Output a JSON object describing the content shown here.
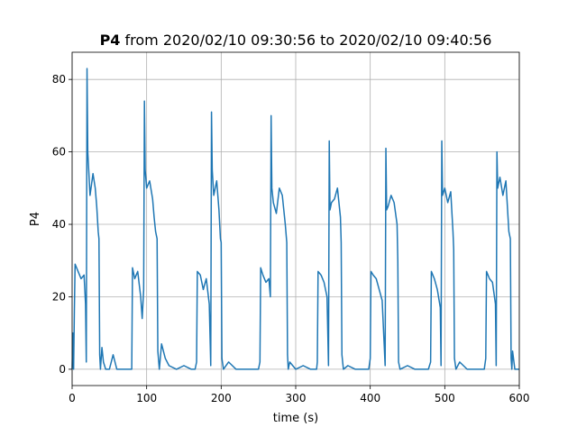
{
  "chart_data": {
    "type": "line",
    "title": {
      "name": "P4",
      "text": "from 2020/02/10 09:30:56 to 2020/02/10 09:40:56"
    },
    "xlabel": "time (s)",
    "ylabel": "P4",
    "xlim": [
      0,
      600
    ],
    "ylim": [
      -4.5,
      87.5
    ],
    "xticks": [
      0,
      100,
      200,
      300,
      400,
      500,
      600
    ],
    "yticks": [
      0,
      20,
      40,
      60,
      80
    ],
    "grid": true,
    "series": [
      {
        "color": "#1f77b4",
        "x": [
          0,
          1,
          2,
          3,
          4,
          8,
          12,
          16,
          18,
          19,
          20,
          21,
          24,
          28,
          31,
          33,
          35,
          36,
          37,
          38,
          40,
          42,
          45,
          50,
          55,
          60,
          70,
          78,
          80,
          81,
          84,
          88,
          92,
          94,
          96,
          97,
          98,
          100,
          104,
          108,
          110,
          112,
          114,
          115,
          117,
          120,
          125,
          130,
          140,
          150,
          160,
          165,
          167,
          168,
          172,
          176,
          180,
          184,
          186,
          187,
          188,
          190,
          194,
          197,
          199,
          200,
          201,
          203,
          210,
          220,
          240,
          250,
          252,
          253,
          256,
          260,
          264,
          266,
          267,
          268,
          270,
          274,
          278,
          282,
          286,
          288,
          289,
          290,
          292,
          300,
          310,
          320,
          328,
          329,
          330,
          334,
          338,
          342,
          344,
          345,
          346,
          348,
          352,
          356,
          360,
          361,
          362,
          364,
          370,
          380,
          390,
          398,
          400,
          401,
          404,
          408,
          412,
          416,
          420,
          421,
          422,
          424,
          428,
          432,
          436,
          437,
          438,
          440,
          450,
          460,
          470,
          478,
          481,
          482,
          486,
          490,
          494,
          495,
          496,
          497,
          500,
          504,
          508,
          511,
          512,
          513,
          515,
          520,
          530,
          540,
          550,
          553,
          555,
          556,
          560,
          564,
          568,
          569,
          570,
          571,
          574,
          578,
          582,
          586,
          588,
          589,
          590,
          591,
          594,
          596,
          600
        ],
        "values": [
          0,
          10,
          0,
          16,
          29,
          27,
          25,
          26,
          18,
          2,
          83,
          60,
          48,
          54,
          50,
          45,
          38,
          36,
          4,
          0,
          6,
          2,
          0,
          0,
          4,
          0,
          0,
          0,
          0,
          28,
          25,
          27,
          20,
          14,
          22,
          74,
          55,
          50,
          52,
          47,
          42,
          38,
          36,
          5,
          0,
          7,
          3,
          1,
          0,
          1,
          0,
          0,
          2,
          27,
          26,
          22,
          25,
          18,
          1,
          71,
          55,
          48,
          52,
          44,
          36,
          35,
          3,
          0,
          2,
          0,
          0,
          0,
          2,
          28,
          26,
          24,
          25,
          20,
          70,
          50,
          46,
          43,
          50,
          48,
          40,
          35,
          4,
          0,
          2,
          0,
          1,
          0,
          0,
          2,
          27,
          26,
          24,
          20,
          1,
          63,
          44,
          46,
          47,
          50,
          42,
          35,
          4,
          0,
          1,
          0,
          0,
          0,
          3,
          27,
          26,
          25,
          22,
          19,
          1,
          61,
          44,
          45,
          48,
          46,
          40,
          30,
          2,
          0,
          1,
          0,
          0,
          0,
          2,
          27,
          25,
          22,
          17,
          1,
          63,
          48,
          50,
          46,
          49,
          38,
          33,
          3,
          0,
          2,
          0,
          0,
          0,
          0,
          3,
          27,
          25,
          24,
          18,
          1,
          60,
          50,
          53,
          48,
          52,
          38,
          36,
          3,
          0,
          5,
          0,
          0,
          0
        ]
      }
    ]
  }
}
